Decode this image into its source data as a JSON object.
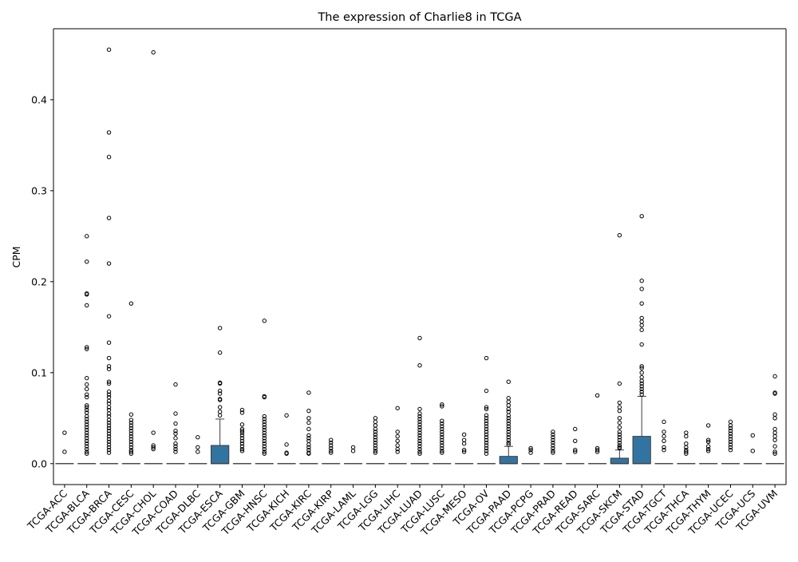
{
  "chart_data": {
    "type": "box",
    "title": "The expression of Charlie8 in TCGA",
    "xlabel": "",
    "ylabel": "CPM",
    "ylim": [
      -0.023,
      0.478
    ],
    "yticks": [
      0.0,
      0.1,
      0.2,
      0.3,
      0.4
    ],
    "ytick_labels": [
      "0.0",
      "0.1",
      "0.2",
      "0.3",
      "0.4"
    ],
    "grid": false,
    "colors": {
      "box_fill": "#3274a1",
      "box_edge": "#3d3d3d",
      "flier_edge": "#000000"
    },
    "categories": [
      "TCGA-ACC",
      "TCGA-BLCA",
      "TCGA-BRCA",
      "TCGA-CESC",
      "TCGA-CHOL",
      "TCGA-COAD",
      "TCGA-DLBC",
      "TCGA-ESCA",
      "TCGA-GBM",
      "TCGA-HNSC",
      "TCGA-KICH",
      "TCGA-KIRC",
      "TCGA-KIRP",
      "TCGA-LAML",
      "TCGA-LGG",
      "TCGA-LIHC",
      "TCGA-LUAD",
      "TCGA-LUSC",
      "TCGA-MESO",
      "TCGA-OV",
      "TCGA-PAAD",
      "TCGA-PCPG",
      "TCGA-PRAD",
      "TCGA-READ",
      "TCGA-SARC",
      "TCGA-SKCM",
      "TCGA-STAD",
      "TCGA-TGCT",
      "TCGA-THCA",
      "TCGA-THYM",
      "TCGA-UCEC",
      "TCGA-UCS",
      "TCGA-UVM"
    ],
    "boxes": [
      {
        "q1": 0,
        "median": 0,
        "q3": 0,
        "whisker_low": 0,
        "whisker_high": 0,
        "fliers": [
          0.034,
          0.013
        ]
      },
      {
        "q1": 0,
        "median": 0,
        "q3": 0,
        "whisker_low": 0,
        "whisker_high": 0,
        "fliers": [
          0.25,
          0.222,
          0.187,
          0.186,
          0.174,
          0.128,
          0.126,
          0.094,
          0.087,
          0.082,
          0.076,
          0.073,
          0.064,
          0.062,
          0.059,
          0.056,
          0.052,
          0.049,
          0.046,
          0.043,
          0.04,
          0.037,
          0.034,
          0.031,
          0.028,
          0.025,
          0.022,
          0.019,
          0.016,
          0.013,
          0.011
        ]
      },
      {
        "q1": 0,
        "median": 0,
        "q3": 0,
        "whisker_low": 0,
        "whisker_high": 0,
        "fliers": [
          0.455,
          0.364,
          0.337,
          0.27,
          0.22,
          0.162,
          0.133,
          0.116,
          0.107,
          0.104,
          0.09,
          0.088,
          0.079,
          0.076,
          0.073,
          0.069,
          0.066,
          0.062,
          0.059,
          0.055,
          0.052,
          0.048,
          0.045,
          0.042,
          0.039,
          0.036,
          0.033,
          0.03,
          0.027,
          0.024,
          0.021,
          0.018,
          0.015,
          0.012
        ]
      },
      {
        "q1": 0,
        "median": 0,
        "q3": 0,
        "whisker_low": 0,
        "whisker_high": 0,
        "fliers": [
          0.176,
          0.054,
          0.048,
          0.045,
          0.042,
          0.039,
          0.036,
          0.033,
          0.03,
          0.027,
          0.024,
          0.021,
          0.018,
          0.015,
          0.013,
          0.011
        ]
      },
      {
        "q1": 0,
        "median": 0,
        "q3": 0,
        "whisker_low": 0,
        "whisker_high": 0,
        "fliers": [
          0.452,
          0.034,
          0.02,
          0.018,
          0.016
        ]
      },
      {
        "q1": 0,
        "median": 0,
        "q3": 0,
        "whisker_low": 0,
        "whisker_high": 0,
        "fliers": [
          0.087,
          0.055,
          0.044,
          0.036,
          0.033,
          0.028,
          0.022,
          0.019,
          0.016,
          0.013
        ]
      },
      {
        "q1": 0,
        "median": 0,
        "q3": 0,
        "whisker_low": 0,
        "whisker_high": 0,
        "fliers": [
          0.029,
          0.018,
          0.013
        ]
      },
      {
        "q1": 0,
        "median": 0,
        "q3": 0.02,
        "whisker_low": 0,
        "whisker_high": 0.049,
        "fliers": [
          0.149,
          0.122,
          0.089,
          0.088,
          0.08,
          0.077,
          0.071,
          0.07,
          0.062,
          0.057,
          0.053
        ]
      },
      {
        "q1": 0,
        "median": 0,
        "q3": 0,
        "whisker_low": 0,
        "whisker_high": 0,
        "fliers": [
          0.059,
          0.056,
          0.043,
          0.038,
          0.036,
          0.034,
          0.031,
          0.028,
          0.025,
          0.022,
          0.019,
          0.016,
          0.014
        ]
      },
      {
        "q1": 0,
        "median": 0,
        "q3": 0,
        "whisker_low": 0,
        "whisker_high": 0,
        "fliers": [
          0.157,
          0.074,
          0.073,
          0.052,
          0.049,
          0.046,
          0.043,
          0.04,
          0.037,
          0.034,
          0.031,
          0.028,
          0.025,
          0.022,
          0.019,
          0.016,
          0.013,
          0.011
        ]
      },
      {
        "q1": 0,
        "median": 0,
        "q3": 0,
        "whisker_low": 0,
        "whisker_high": 0,
        "fliers": [
          0.053,
          0.021,
          0.012,
          0.011
        ]
      },
      {
        "q1": 0,
        "median": 0,
        "q3": 0,
        "whisker_low": 0,
        "whisker_high": 0,
        "fliers": [
          0.078,
          0.058,
          0.05,
          0.045,
          0.038,
          0.031,
          0.028,
          0.025,
          0.021,
          0.018,
          0.015,
          0.012,
          0.011
        ]
      },
      {
        "q1": 0,
        "median": 0,
        "q3": 0,
        "whisker_low": 0,
        "whisker_high": 0,
        "fliers": [
          0.026,
          0.023,
          0.02,
          0.017,
          0.014,
          0.012
        ]
      },
      {
        "q1": 0,
        "median": 0,
        "q3": 0,
        "whisker_low": 0,
        "whisker_high": 0,
        "fliers": [
          0.018,
          0.014
        ]
      },
      {
        "q1": 0,
        "median": 0,
        "q3": 0,
        "whisker_low": 0,
        "whisker_high": 0,
        "fliers": [
          0.05,
          0.046,
          0.042,
          0.038,
          0.035,
          0.032,
          0.029,
          0.026,
          0.023,
          0.02,
          0.017,
          0.014,
          0.012
        ]
      },
      {
        "q1": 0,
        "median": 0,
        "q3": 0,
        "whisker_low": 0,
        "whisker_high": 0,
        "fliers": [
          0.061,
          0.035,
          0.03,
          0.025,
          0.02,
          0.016,
          0.013
        ]
      },
      {
        "q1": 0,
        "median": 0,
        "q3": 0,
        "whisker_low": 0,
        "whisker_high": 0,
        "fliers": [
          0.138,
          0.108,
          0.06,
          0.055,
          0.052,
          0.049,
          0.046,
          0.043,
          0.04,
          0.037,
          0.034,
          0.031,
          0.028,
          0.025,
          0.022,
          0.019,
          0.016,
          0.013,
          0.011
        ]
      },
      {
        "q1": 0,
        "median": 0,
        "q3": 0,
        "whisker_low": 0,
        "whisker_high": 0,
        "fliers": [
          0.065,
          0.063,
          0.047,
          0.044,
          0.041,
          0.038,
          0.035,
          0.032,
          0.029,
          0.026,
          0.023,
          0.02,
          0.017,
          0.014,
          0.012
        ]
      },
      {
        "q1": 0,
        "median": 0,
        "q3": 0,
        "whisker_low": 0,
        "whisker_high": 0,
        "fliers": [
          0.032,
          0.026,
          0.022,
          0.015,
          0.013
        ]
      },
      {
        "q1": 0,
        "median": 0,
        "q3": 0,
        "whisker_low": 0,
        "whisker_high": 0,
        "fliers": [
          0.116,
          0.08,
          0.062,
          0.06,
          0.053,
          0.05,
          0.047,
          0.044,
          0.041,
          0.038,
          0.035,
          0.032,
          0.029,
          0.026,
          0.023,
          0.02,
          0.017,
          0.014,
          0.011
        ]
      },
      {
        "q1": 0,
        "median": 0,
        "q3": 0.008,
        "whisker_low": 0,
        "whisker_high": 0.019,
        "fliers": [
          0.09,
          0.072,
          0.068,
          0.064,
          0.06,
          0.057,
          0.053,
          0.05,
          0.047,
          0.044,
          0.041,
          0.038,
          0.035,
          0.032,
          0.029,
          0.026,
          0.023,
          0.021
        ]
      },
      {
        "q1": 0,
        "median": 0,
        "q3": 0,
        "whisker_low": 0,
        "whisker_high": 0,
        "fliers": [
          0.017,
          0.015,
          0.012
        ]
      },
      {
        "q1": 0,
        "median": 0,
        "q3": 0,
        "whisker_low": 0,
        "whisker_high": 0,
        "fliers": [
          0.035,
          0.032,
          0.029,
          0.026,
          0.023,
          0.02,
          0.017,
          0.014,
          0.012
        ]
      },
      {
        "q1": 0,
        "median": 0,
        "q3": 0,
        "whisker_low": 0,
        "whisker_high": 0,
        "fliers": [
          0.038,
          0.025,
          0.015,
          0.013
        ]
      },
      {
        "q1": 0,
        "median": 0,
        "q3": 0,
        "whisker_low": 0,
        "whisker_high": 0,
        "fliers": [
          0.075,
          0.017,
          0.015,
          0.013
        ]
      },
      {
        "q1": 0,
        "median": 0,
        "q3": 0.006,
        "whisker_low": 0,
        "whisker_high": 0.015,
        "fliers": [
          0.251,
          0.088,
          0.067,
          0.062,
          0.058,
          0.05,
          0.045,
          0.04,
          0.035,
          0.032,
          0.029,
          0.026,
          0.023,
          0.02,
          0.018,
          0.017
        ]
      },
      {
        "q1": 0,
        "median": 0,
        "q3": 0.03,
        "whisker_low": 0,
        "whisker_high": 0.074,
        "fliers": [
          0.272,
          0.201,
          0.192,
          0.176,
          0.16,
          0.156,
          0.152,
          0.147,
          0.131,
          0.107,
          0.105,
          0.1,
          0.095,
          0.091,
          0.088,
          0.085,
          0.082,
          0.079,
          0.076
        ]
      },
      {
        "q1": 0,
        "median": 0,
        "q3": 0,
        "whisker_low": 0,
        "whisker_high": 0,
        "fliers": [
          0.046,
          0.035,
          0.03,
          0.025,
          0.018,
          0.015
        ]
      },
      {
        "q1": 0,
        "median": 0,
        "q3": 0,
        "whisker_low": 0,
        "whisker_high": 0,
        "fliers": [
          0.034,
          0.03,
          0.022,
          0.018,
          0.015,
          0.013,
          0.011
        ]
      },
      {
        "q1": 0,
        "median": 0,
        "q3": 0,
        "whisker_low": 0,
        "whisker_high": 0,
        "fliers": [
          0.042,
          0.026,
          0.024,
          0.019,
          0.016,
          0.014
        ]
      },
      {
        "q1": 0,
        "median": 0,
        "q3": 0,
        "whisker_low": 0,
        "whisker_high": 0,
        "fliers": [
          0.046,
          0.042,
          0.039,
          0.036,
          0.033,
          0.03,
          0.027,
          0.024,
          0.021,
          0.018,
          0.015
        ]
      },
      {
        "q1": 0,
        "median": 0,
        "q3": 0,
        "whisker_low": 0,
        "whisker_high": 0,
        "fliers": [
          0.031,
          0.014
        ]
      },
      {
        "q1": 0,
        "median": 0,
        "q3": 0,
        "whisker_low": 0,
        "whisker_high": 0,
        "fliers": [
          0.096,
          0.078,
          0.077,
          0.054,
          0.05,
          0.038,
          0.034,
          0.03,
          0.026,
          0.019,
          0.013,
          0.011
        ]
      }
    ]
  }
}
